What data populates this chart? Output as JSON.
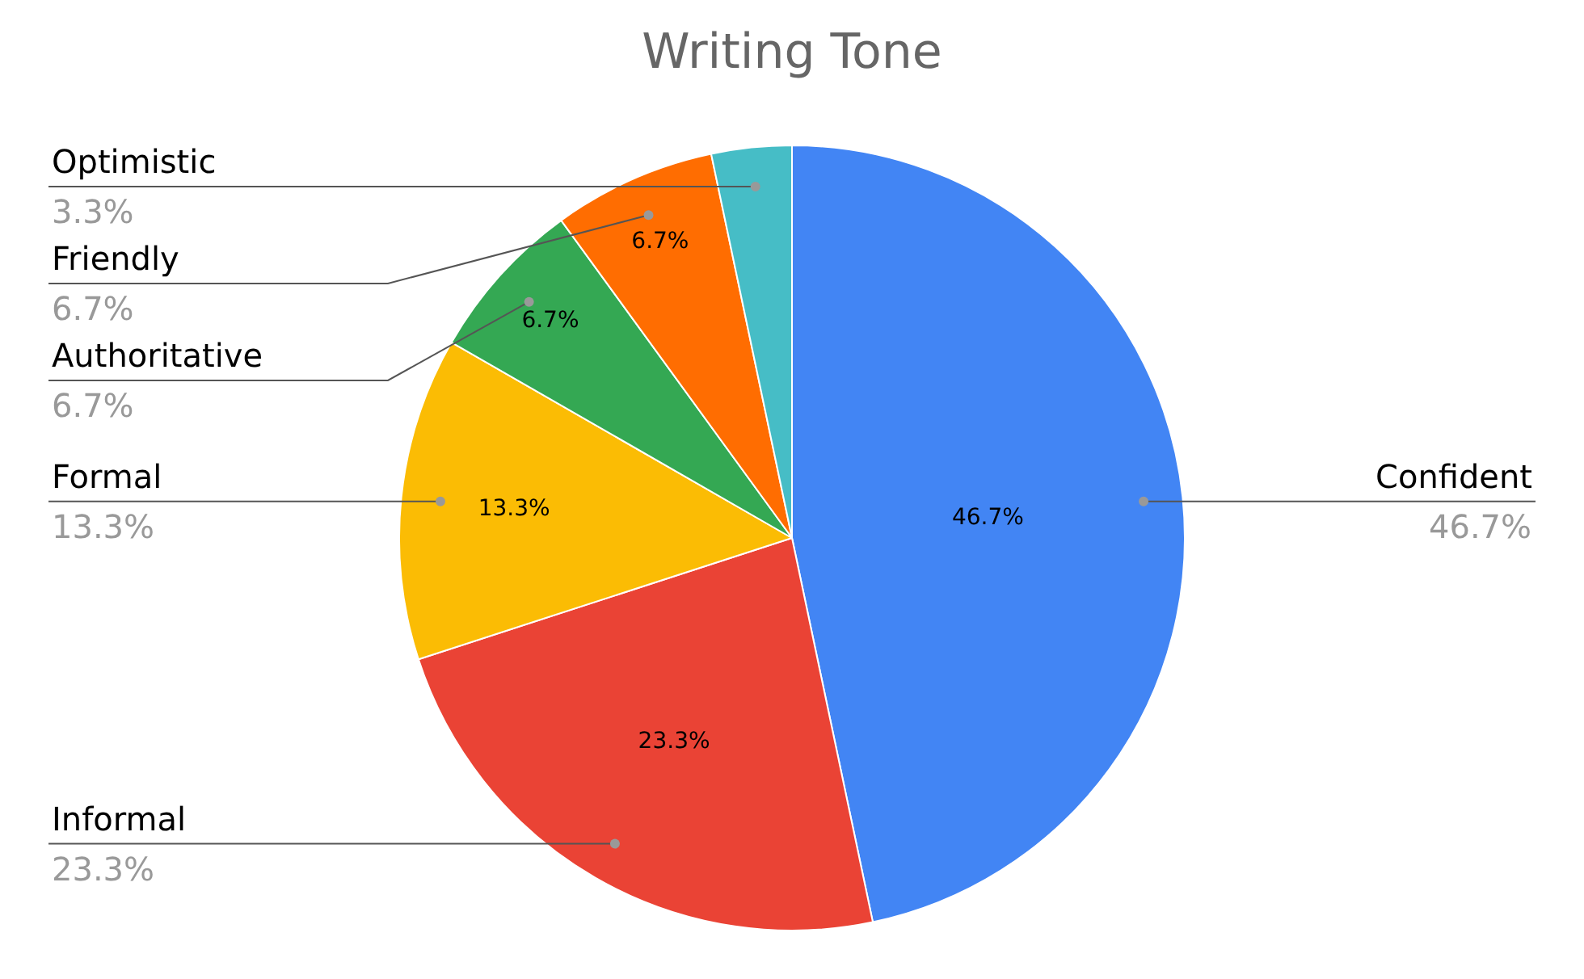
{
  "chart_data": {
    "type": "pie",
    "title": "Writing Tone",
    "categories": [
      "Confident",
      "Informal",
      "Formal",
      "Authoritative",
      "Friendly",
      "Optimistic"
    ],
    "values": [
      46.7,
      23.3,
      13.3,
      6.7,
      6.7,
      3.3
    ],
    "colors": [
      "#4285f4",
      "#ea4335",
      "#fbbc04",
      "#34a853",
      "#ff6d01",
      "#46bdc6"
    ],
    "value_labels": [
      "46.7%",
      "23.3%",
      "13.3%",
      "6.7%",
      "6.7%",
      "3.3%"
    ]
  }
}
